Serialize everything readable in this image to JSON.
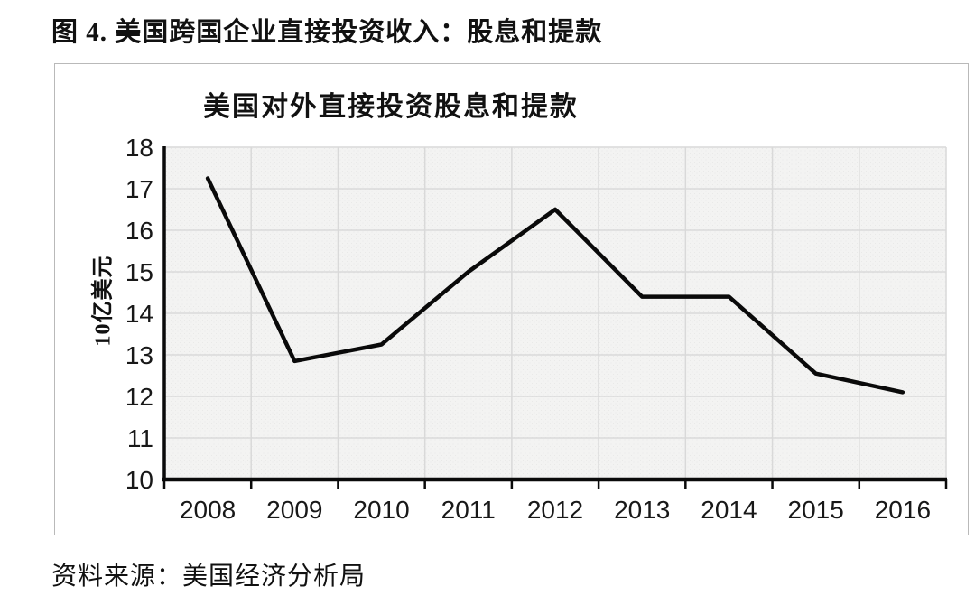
{
  "figure": {
    "title": "图 4. 美国跨国企业直接投资收入：股息和提款"
  },
  "chart": {
    "title": "美国对外直接投资股息和提款",
    "ylabel": "10亿美元"
  },
  "source": {
    "text": "资料来源：美国经济分析局"
  },
  "chart_data": {
    "type": "line",
    "title": "美国对外直接投资股息和提款",
    "xlabel": "",
    "ylabel": "10亿美元",
    "categories": [
      "2008",
      "2009",
      "2010",
      "2011",
      "2012",
      "2013",
      "2014",
      "2015",
      "2016"
    ],
    "series": [
      {
        "name": "美国对外直接投资股息和提款",
        "values": [
          17.25,
          12.85,
          13.25,
          15.0,
          16.5,
          14.4,
          14.4,
          12.55,
          12.1
        ]
      }
    ],
    "ylim": [
      10,
      18
    ],
    "yticks": [
      10,
      11,
      12,
      13,
      14,
      15,
      16,
      17,
      18
    ],
    "grid": true,
    "legend": false,
    "line_color": "#0a0a0a",
    "plot_bg": "#f3f3f2",
    "gridline_color": "#d9d9d9",
    "axis_color": "#0a0a0a"
  }
}
